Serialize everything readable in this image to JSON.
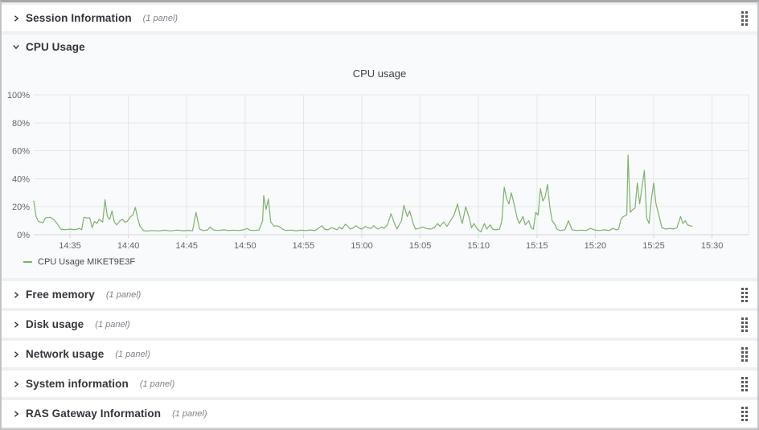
{
  "rows": [
    {
      "label": "Session Information",
      "panels": "(1 panel)",
      "state": "collapsed"
    },
    {
      "label": "CPU Usage",
      "panels": "",
      "state": "expanded"
    },
    {
      "label": "Free memory",
      "panels": "(1 panel)",
      "state": "collapsed"
    },
    {
      "label": "Disk usage",
      "panels": "(1 panel)",
      "state": "collapsed"
    },
    {
      "label": "Network usage",
      "panels": "(1 panel)",
      "state": "collapsed"
    },
    {
      "label": "System information",
      "panels": "(1 panel)",
      "state": "collapsed"
    },
    {
      "label": "RAS Gateway Information",
      "panels": "(1 panel)",
      "state": "collapsed"
    }
  ],
  "colors": {
    "series_green": "#7eb26d",
    "grid": "#e4e6e8",
    "axis": "#d2d4d7",
    "row_bg": "#ffffff",
    "page_bg": "#eef0f1",
    "section_bg": "#f9fafb"
  },
  "chart_data": {
    "type": "line",
    "title": "CPU usage",
    "xlabel": "",
    "ylabel": "",
    "ylim": [
      0,
      100
    ],
    "grid": true,
    "legend_position": "bottom-left",
    "y_ticks": [
      "0%",
      "20%",
      "40%",
      "60%",
      "80%",
      "100%"
    ],
    "x_ticks": [
      "14:35",
      "14:40",
      "14:45",
      "14:50",
      "14:55",
      "15:00",
      "15:05",
      "15:10",
      "15:15",
      "15:20",
      "15:25",
      "15:30"
    ],
    "x_unit": "minutes after 14:00",
    "series": [
      {
        "name": "CPU Usage MIKET9E3F",
        "color": "#7eb26d",
        "points": [
          [
            31.9,
            24
          ],
          [
            32.1,
            13
          ],
          [
            32.3,
            9.5
          ],
          [
            32.7,
            8.5
          ],
          [
            32.9,
            12
          ],
          [
            33.3,
            12.5
          ],
          [
            33.6,
            11
          ],
          [
            33.9,
            8
          ],
          [
            34.2,
            4
          ],
          [
            34.6,
            3.5
          ],
          [
            35.0,
            4
          ],
          [
            35.4,
            3.5
          ],
          [
            35.8,
            4.5
          ],
          [
            36.0,
            3.5
          ],
          [
            36.2,
            12.5
          ],
          [
            36.4,
            12
          ],
          [
            36.7,
            12
          ],
          [
            36.9,
            5
          ],
          [
            37.1,
            9.5
          ],
          [
            37.3,
            8
          ],
          [
            37.5,
            11
          ],
          [
            37.8,
            9
          ],
          [
            38.0,
            25
          ],
          [
            38.2,
            13
          ],
          [
            38.4,
            11
          ],
          [
            38.6,
            17
          ],
          [
            38.8,
            9
          ],
          [
            39.0,
            7
          ],
          [
            39.3,
            10
          ],
          [
            39.5,
            11
          ],
          [
            39.7,
            9
          ],
          [
            39.9,
            9.5
          ],
          [
            40.2,
            13
          ],
          [
            40.4,
            14
          ],
          [
            40.6,
            19.5
          ],
          [
            40.8,
            12
          ],
          [
            41.0,
            6
          ],
          [
            41.3,
            3
          ],
          [
            41.5,
            2.6
          ],
          [
            42.1,
            3
          ],
          [
            42.6,
            2.7
          ],
          [
            43.1,
            3.2
          ],
          [
            43.6,
            2.7
          ],
          [
            44.2,
            3.3
          ],
          [
            44.7,
            2.8
          ],
          [
            45.2,
            3.1
          ],
          [
            45.5,
            2.8
          ],
          [
            45.8,
            16
          ],
          [
            46.1,
            4
          ],
          [
            46.4,
            3
          ],
          [
            46.8,
            3.4
          ],
          [
            47.0,
            5.5
          ],
          [
            47.3,
            3.4
          ],
          [
            47.7,
            3
          ],
          [
            48.2,
            3.5
          ],
          [
            48.6,
            3
          ],
          [
            49.0,
            3.3
          ],
          [
            49.4,
            3
          ],
          [
            49.8,
            3.4
          ],
          [
            50.2,
            4.5
          ],
          [
            50.4,
            3.2
          ],
          [
            50.8,
            3
          ],
          [
            51.2,
            3.4
          ],
          [
            51.5,
            10
          ],
          [
            51.6,
            28
          ],
          [
            51.8,
            18
          ],
          [
            52.0,
            25.5
          ],
          [
            52.2,
            9
          ],
          [
            52.5,
            6
          ],
          [
            52.7,
            6.5
          ],
          [
            53.0,
            5.5
          ],
          [
            53.2,
            4
          ],
          [
            53.5,
            3
          ],
          [
            53.9,
            3.3
          ],
          [
            54.4,
            2.8
          ],
          [
            54.8,
            3.2
          ],
          [
            55.2,
            3
          ],
          [
            55.6,
            3.4
          ],
          [
            56.0,
            3
          ],
          [
            56.6,
            6.5
          ],
          [
            56.8,
            4
          ],
          [
            57.1,
            3.5
          ],
          [
            57.4,
            5
          ],
          [
            57.6,
            4.5
          ],
          [
            57.9,
            3.5
          ],
          [
            58.1,
            5.5
          ],
          [
            58.3,
            4
          ],
          [
            58.6,
            7.5
          ],
          [
            58.8,
            6
          ],
          [
            59.0,
            4
          ],
          [
            59.3,
            5
          ],
          [
            59.5,
            6.5
          ],
          [
            59.8,
            4.5
          ],
          [
            60.0,
            4
          ],
          [
            60.3,
            6
          ],
          [
            60.5,
            5
          ],
          [
            60.8,
            4.5
          ],
          [
            61.0,
            6.5
          ],
          [
            61.2,
            5
          ],
          [
            61.4,
            4
          ],
          [
            61.7,
            5.5
          ],
          [
            61.9,
            4.5
          ],
          [
            62.2,
            7
          ],
          [
            62.5,
            15
          ],
          [
            62.8,
            8
          ],
          [
            63.0,
            4
          ],
          [
            63.4,
            10
          ],
          [
            63.6,
            21
          ],
          [
            63.9,
            13
          ],
          [
            64.1,
            17
          ],
          [
            64.4,
            8
          ],
          [
            64.6,
            4
          ],
          [
            64.9,
            4.5
          ],
          [
            65.2,
            5.5
          ],
          [
            65.5,
            4.5
          ],
          [
            65.9,
            4
          ],
          [
            66.2,
            5
          ],
          [
            66.5,
            8
          ],
          [
            66.7,
            6
          ],
          [
            67.0,
            9
          ],
          [
            67.3,
            6
          ],
          [
            67.6,
            10
          ],
          [
            67.9,
            14
          ],
          [
            68.2,
            22
          ],
          [
            68.4,
            14
          ],
          [
            68.6,
            8
          ],
          [
            68.9,
            20
          ],
          [
            69.2,
            12
          ],
          [
            69.4,
            5
          ],
          [
            69.6,
            8
          ],
          [
            69.9,
            4
          ],
          [
            70.2,
            2
          ],
          [
            70.5,
            8
          ],
          [
            70.7,
            4
          ],
          [
            71.0,
            7
          ],
          [
            71.2,
            4
          ],
          [
            71.5,
            3.5
          ],
          [
            71.8,
            4
          ],
          [
            72.0,
            10
          ],
          [
            72.2,
            34
          ],
          [
            72.4,
            26
          ],
          [
            72.6,
            22
          ],
          [
            72.8,
            30
          ],
          [
            73.1,
            20
          ],
          [
            73.3,
            12
          ],
          [
            73.5,
            8
          ],
          [
            73.8,
            13
          ],
          [
            74.0,
            7
          ],
          [
            74.3,
            10
          ],
          [
            74.5,
            5
          ],
          [
            74.7,
            4
          ],
          [
            74.9,
            16
          ],
          [
            75.1,
            14
          ],
          [
            75.3,
            33
          ],
          [
            75.5,
            24
          ],
          [
            75.7,
            27
          ],
          [
            75.9,
            36
          ],
          [
            76.1,
            20
          ],
          [
            76.3,
            10
          ],
          [
            76.5,
            8
          ],
          [
            76.7,
            4
          ],
          [
            77.0,
            3
          ],
          [
            77.4,
            3.5
          ],
          [
            77.7,
            10
          ],
          [
            78.0,
            3.5
          ],
          [
            78.4,
            3
          ],
          [
            78.8,
            3.3
          ],
          [
            79.2,
            3
          ],
          [
            79.6,
            4.5
          ],
          [
            80.0,
            3.2
          ],
          [
            80.4,
            3
          ],
          [
            80.8,
            3.5
          ],
          [
            81.2,
            3
          ],
          [
            81.5,
            4.5
          ],
          [
            81.8,
            3.5
          ],
          [
            82.0,
            4
          ],
          [
            82.2,
            11
          ],
          [
            82.4,
            13
          ],
          [
            82.7,
            14
          ],
          [
            82.8,
            57
          ],
          [
            83.0,
            16
          ],
          [
            83.2,
            18
          ],
          [
            83.4,
            19
          ],
          [
            83.6,
            37
          ],
          [
            83.8,
            22
          ],
          [
            84.2,
            46
          ],
          [
            84.4,
            12
          ],
          [
            84.6,
            8
          ],
          [
            84.8,
            25
          ],
          [
            85.0,
            37
          ],
          [
            85.2,
            22
          ],
          [
            85.5,
            12
          ],
          [
            85.7,
            5
          ],
          [
            86.0,
            4
          ],
          [
            86.4,
            4.5
          ],
          [
            86.7,
            4
          ],
          [
            87.0,
            5
          ],
          [
            87.3,
            13
          ],
          [
            87.5,
            8
          ],
          [
            87.7,
            10
          ],
          [
            87.9,
            7
          ],
          [
            88.1,
            6.5
          ],
          [
            88.3,
            6
          ]
        ]
      }
    ]
  }
}
